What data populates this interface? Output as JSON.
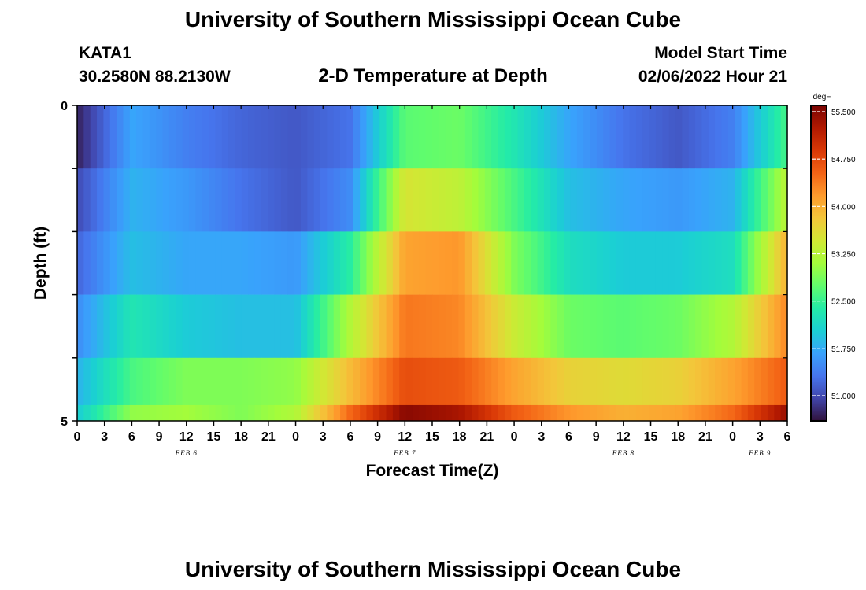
{
  "header": {
    "title": "University of Southern Mississippi Ocean Cube",
    "station": "KATA1",
    "coords": "30.2580N  88.2130W",
    "plot_title": "2-D Temperature at Depth",
    "model_start_label": "Model Start Time",
    "model_start_value": "02/06/2022 Hour 21"
  },
  "footer": {
    "title": "University of Southern Mississippi Ocean Cube"
  },
  "chart_data": {
    "type": "heatmap",
    "title": "2-D Temperature at Depth",
    "xlabel": "Forecast Time(Z)",
    "ylabel": "Depth (ft)",
    "x_tick_labels": [
      "0",
      "3",
      "6",
      "9",
      "12",
      "15",
      "18",
      "21",
      "0",
      "3",
      "6",
      "9",
      "12",
      "15",
      "18",
      "21",
      "0",
      "3",
      "6",
      "9",
      "12",
      "15",
      "18",
      "21",
      "0",
      "3",
      "6"
    ],
    "x_date_labels": [
      {
        "label": "FEB 6",
        "at_tick": 4
      },
      {
        "label": "FEB 7",
        "at_tick": 12
      },
      {
        "label": "FEB 8",
        "at_tick": 20
      },
      {
        "label": "FEB 9",
        "at_tick": 25
      }
    ],
    "y_tick_labels": [
      "0",
      "5"
    ],
    "y_range": [
      0,
      5
    ],
    "colorbar": {
      "unit": "degF",
      "range": [
        50.6,
        55.6
      ],
      "tick_values": [
        51.0,
        51.75,
        52.5,
        53.25,
        54.0,
        54.75,
        55.5
      ],
      "tick_labels": [
        "51.000",
        "51.750",
        "52.500",
        "53.250",
        "54.000",
        "54.750",
        "55.500"
      ],
      "colors": [
        "#30123b",
        "#4145ab",
        "#4675ed",
        "#39a2fc",
        "#1bcfd4",
        "#24eca6",
        "#61fc6c",
        "#a4fc3b",
        "#d1e834",
        "#f3c63a",
        "#fe9b2d",
        "#f36315",
        "#d93806",
        "#b11901",
        "#7a0402"
      ]
    },
    "time_hours": [
      0,
      6,
      12,
      18,
      24,
      30,
      36,
      42,
      48,
      54,
      60,
      66,
      72,
      78
    ],
    "depth_rows": [
      {
        "depth_ft": 0.5,
        "temps_degF": [
          50.7,
          51.7,
          51.4,
          51.2,
          51.1,
          51.3,
          52.7,
          52.8,
          52.3,
          51.7,
          51.3,
          51.1,
          51.4,
          52.6
        ]
      },
      {
        "depth_ft": 1.5,
        "temps_degF": [
          51.0,
          51.8,
          51.6,
          51.3,
          51.1,
          51.5,
          53.5,
          53.3,
          52.6,
          51.9,
          51.7,
          51.6,
          51.8,
          53.3
        ]
      },
      {
        "depth_ft": 2.5,
        "temps_degF": [
          51.2,
          51.9,
          51.7,
          51.7,
          51.6,
          52.4,
          54.1,
          54.2,
          52.9,
          52.2,
          52.0,
          52.0,
          52.2,
          54.0
        ]
      },
      {
        "depth_ft": 3.5,
        "temps_degF": [
          51.5,
          52.3,
          52.0,
          51.9,
          51.9,
          53.2,
          54.4,
          54.3,
          53.4,
          52.8,
          52.7,
          52.8,
          53.2,
          54.3
        ]
      },
      {
        "depth_ft": 4.5,
        "temps_degF": [
          51.8,
          52.6,
          52.9,
          52.9,
          53.0,
          53.9,
          54.7,
          54.6,
          54.1,
          53.7,
          53.6,
          53.7,
          54.1,
          54.6
        ]
      },
      {
        "depth_ft": 5.0,
        "temps_degF": [
          52.0,
          53.0,
          53.1,
          52.9,
          53.2,
          54.5,
          55.5,
          55.3,
          54.6,
          54.2,
          54.0,
          54.1,
          54.5,
          55.4
        ]
      }
    ]
  }
}
